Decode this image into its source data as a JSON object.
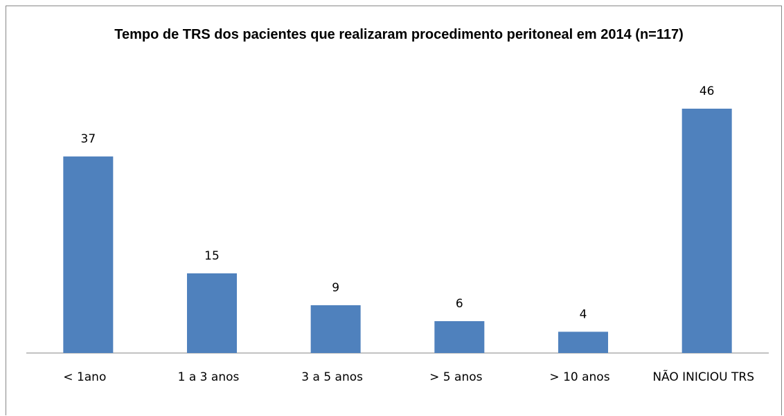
{
  "chart_data": {
    "type": "bar",
    "title": "Tempo de TRS dos pacientes que realizaram procedimento peritoneal em 2014 (n=117)",
    "categories": [
      "< 1ano",
      "1 a 3 anos",
      "3 a 5 anos",
      "> 5 anos",
      "> 10 anos",
      "NÃO INICIOU TRS"
    ],
    "values": [
      37,
      15,
      9,
      6,
      4,
      46
    ],
    "color": "#4f81bd"
  }
}
